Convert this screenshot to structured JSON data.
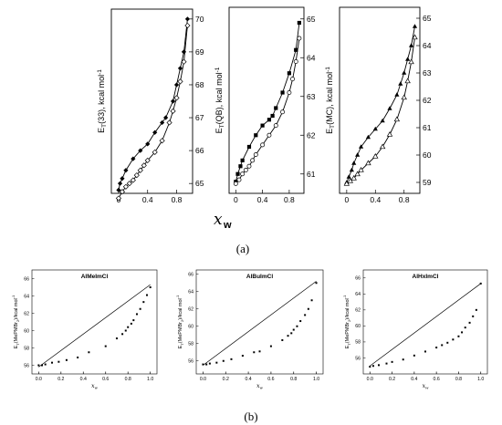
{
  "figure": {
    "panel_a_label": "(a)",
    "panel_b_label": "(b)",
    "panel_a_xlabel": "x",
    "panel_a_xlabel_sub": "w"
  },
  "chart_data": [
    {
      "type": "scatter",
      "panel": "a",
      "ylabel": "E_T(33), kcal mol^-1",
      "ylabel_main": "E",
      "ylabel_sub": "T",
      "ylabel_rest": "(33), kcal mol",
      "ylabel_sup": "-1",
      "xlim": [
        -0.1,
        1.02
      ],
      "ylim": [
        64.7,
        70.3
      ],
      "xticks": [
        0,
        0.4,
        0.8
      ],
      "xtick_labels": [
        "0",
        "0.4",
        "0.8"
      ],
      "yticks": [
        65,
        66,
        67,
        68,
        69,
        70
      ],
      "ytick_labels": [
        "65",
        "66",
        "67",
        "68",
        "69",
        "70"
      ],
      "series": [
        {
          "marker": "filled-diamond",
          "x": [
            0,
            0.02,
            0.05,
            0.1,
            0.2,
            0.3,
            0.4,
            0.5,
            0.6,
            0.65,
            0.75,
            0.8,
            0.85,
            0.9,
            0.95
          ],
          "y": [
            64.8,
            65.0,
            65.15,
            65.4,
            65.75,
            66.0,
            66.2,
            66.55,
            66.85,
            67.0,
            67.5,
            68.0,
            68.5,
            69.0,
            70.0
          ]
        },
        {
          "marker": "open-diamond",
          "x": [
            0,
            0.05,
            0.1,
            0.15,
            0.2,
            0.25,
            0.3,
            0.35,
            0.4,
            0.5,
            0.6,
            0.7,
            0.75,
            0.8,
            0.85,
            0.9,
            0.95
          ],
          "y": [
            64.55,
            64.75,
            64.9,
            65.0,
            65.1,
            65.25,
            65.4,
            65.55,
            65.7,
            65.95,
            66.3,
            66.85,
            67.2,
            67.6,
            68.1,
            68.7,
            69.8
          ]
        }
      ]
    },
    {
      "type": "scatter",
      "panel": "a",
      "ylabel": "E_T(QB), kcal mol^-1",
      "ylabel_main": "E",
      "ylabel_sub": "T",
      "ylabel_rest": "(QB), kcal mol",
      "ylabel_sup": "-1",
      "xlim": [
        -0.1,
        1.02
      ],
      "ylim": [
        60.5,
        65.3
      ],
      "xticks": [
        0,
        0.4,
        0.8
      ],
      "xtick_labels": [
        "0",
        "0.4",
        "0.8"
      ],
      "yticks": [
        61,
        62,
        63,
        64,
        65
      ],
      "ytick_labels": [
        "61",
        "62",
        "63",
        "64",
        "65"
      ],
      "series": [
        {
          "marker": "filled-square",
          "x": [
            0,
            0.03,
            0.07,
            0.1,
            0.2,
            0.3,
            0.4,
            0.5,
            0.55,
            0.6,
            0.7,
            0.8,
            0.9,
            0.95
          ],
          "y": [
            60.8,
            61.0,
            61.2,
            61.35,
            61.7,
            62.0,
            62.25,
            62.4,
            62.5,
            62.7,
            63.1,
            63.6,
            64.2,
            64.9
          ]
        },
        {
          "marker": "open-circle",
          "x": [
            0,
            0.05,
            0.1,
            0.15,
            0.2,
            0.25,
            0.3,
            0.4,
            0.5,
            0.6,
            0.7,
            0.8,
            0.85,
            0.9,
            0.95
          ],
          "y": [
            60.75,
            60.85,
            61.0,
            61.1,
            61.2,
            61.35,
            61.5,
            61.75,
            62.0,
            62.25,
            62.6,
            63.1,
            63.45,
            63.9,
            64.5
          ]
        }
      ]
    },
    {
      "type": "scatter",
      "panel": "a",
      "ylabel": "E_T(MC), kcal mol^-1",
      "ylabel_main": "E",
      "ylabel_sub": "T",
      "ylabel_rest": "(MC), kcal mol",
      "ylabel_sup": "-1",
      "xlim": [
        -0.1,
        1.02
      ],
      "ylim": [
        58.6,
        65.4
      ],
      "xticks": [
        0,
        0.4,
        0.8
      ],
      "xtick_labels": [
        "0",
        "0.4",
        "0.8"
      ],
      "yticks": [
        59,
        60,
        61,
        62,
        63,
        64,
        65
      ],
      "ytick_labels": [
        "59",
        "60",
        "61",
        "62",
        "63",
        "64",
        "65"
      ],
      "series": [
        {
          "marker": "filled-triangle",
          "x": [
            0,
            0.03,
            0.07,
            0.1,
            0.15,
            0.2,
            0.3,
            0.4,
            0.5,
            0.6,
            0.7,
            0.75,
            0.8,
            0.85,
            0.9,
            0.95
          ],
          "y": [
            59.0,
            59.2,
            59.45,
            59.7,
            60.0,
            60.3,
            60.65,
            60.95,
            61.25,
            61.7,
            62.2,
            62.6,
            63.0,
            63.5,
            64.0,
            64.7
          ]
        },
        {
          "marker": "open-triangle",
          "x": [
            0,
            0.05,
            0.1,
            0.15,
            0.2,
            0.3,
            0.4,
            0.5,
            0.6,
            0.7,
            0.8,
            0.85,
            0.9,
            0.95
          ],
          "y": [
            58.95,
            59.05,
            59.15,
            59.3,
            59.45,
            59.7,
            59.95,
            60.3,
            60.75,
            61.3,
            62.1,
            62.7,
            63.4,
            64.3
          ]
        }
      ]
    },
    {
      "type": "scatter",
      "panel": "b",
      "title": "AlMeImCl",
      "ylabel": "E_T(MePMBr_2)/kcal mol^-1",
      "ylabel_main": "E",
      "ylabel_sub": "T",
      "ylabel_rest": "(MePMBr",
      "ylabel_sub2": "2",
      "ylabel_rest2": ")/kcal mol",
      "ylabel_sup": "-1",
      "xlabel": "x",
      "xlabel_sub": "w",
      "xlim": [
        -0.06,
        1.06
      ],
      "ylim": [
        55,
        67
      ],
      "xticks": [
        0,
        0.2,
        0.4,
        0.6,
        0.8,
        1.0
      ],
      "xtick_labels": [
        "0.0",
        "0.2",
        "0.4",
        "0.6",
        "0.8",
        "1.0"
      ],
      "yticks": [
        56,
        58,
        60,
        62,
        64,
        66
      ],
      "ytick_labels": [
        "56",
        "58",
        "60",
        "62",
        "64",
        "66"
      ],
      "series": [
        {
          "marker": "point",
          "x": [
            0,
            0.03,
            0.06,
            0.12,
            0.18,
            0.25,
            0.35,
            0.45,
            0.6,
            0.7,
            0.75,
            0.78,
            0.8,
            0.83,
            0.85,
            0.88,
            0.91,
            0.94,
            0.97,
            1.0
          ],
          "y": [
            56.0,
            56.0,
            56.1,
            56.3,
            56.4,
            56.6,
            56.9,
            57.5,
            58.2,
            59.1,
            59.6,
            60.0,
            60.4,
            60.8,
            61.2,
            61.9,
            62.5,
            63.3,
            64.1,
            65.0
          ]
        },
        {
          "marker": "line",
          "x": [
            0,
            1.0
          ],
          "y": [
            55.8,
            65.3
          ]
        }
      ]
    },
    {
      "type": "scatter",
      "panel": "b",
      "title": "AlBuImCl",
      "ylabel": "E_T(MePMBr_2)/kcal mol^-1",
      "ylabel_main": "E",
      "ylabel_sub": "T",
      "ylabel_rest": "(MePMBr",
      "ylabel_sub2": "2",
      "ylabel_rest2": ")/kcal mol",
      "ylabel_sup": "-1",
      "xlabel": "x",
      "xlabel_sub": "w",
      "xlim": [
        -0.06,
        1.06
      ],
      "ylim": [
        54.5,
        66.5
      ],
      "xticks": [
        0,
        0.2,
        0.4,
        0.6,
        0.8,
        1.0
      ],
      "xtick_labels": [
        "0.0",
        "0.2",
        "0.4",
        "0.6",
        "0.8",
        "1.0"
      ],
      "yticks": [
        56,
        58,
        60,
        62,
        64,
        66
      ],
      "ytick_labels": [
        "56",
        "58",
        "60",
        "62",
        "64",
        "66"
      ],
      "series": [
        {
          "marker": "point",
          "x": [
            0,
            0.03,
            0.06,
            0.12,
            0.18,
            0.25,
            0.35,
            0.45,
            0.5,
            0.6,
            0.7,
            0.75,
            0.78,
            0.8,
            0.83,
            0.86,
            0.9,
            0.93,
            0.96,
            1.0
          ],
          "y": [
            55.6,
            55.6,
            55.7,
            55.8,
            56.0,
            56.2,
            56.6,
            57.0,
            57.1,
            57.7,
            58.4,
            58.9,
            59.2,
            59.6,
            60.0,
            60.6,
            61.3,
            62.0,
            63.0,
            65.0
          ]
        },
        {
          "marker": "line",
          "x": [
            0,
            1.0
          ],
          "y": [
            55.5,
            65.2
          ]
        }
      ]
    },
    {
      "type": "scatter",
      "panel": "b",
      "title": "AlHxImCl",
      "ylabel": "E_T(MePMBr_2)/kcal mol^-1",
      "ylabel_main": "E",
      "ylabel_sub": "T",
      "ylabel_rest": "(MePMBr",
      "ylabel_sub2": "2",
      "ylabel_rest2": ")/kcal mol",
      "ylabel_sup": "-1",
      "xlabel": "x",
      "xlabel_sub": "w",
      "xlim": [
        -0.06,
        1.06
      ],
      "ylim": [
        54,
        67
      ],
      "xticks": [
        0,
        0.2,
        0.4,
        0.6,
        0.8,
        1.0
      ],
      "xtick_labels": [
        "0.0",
        "0.2",
        "0.4",
        "0.6",
        "0.8",
        "1.0"
      ],
      "yticks": [
        56,
        58,
        60,
        62,
        64,
        66
      ],
      "ytick_labels": [
        "56",
        "58",
        "60",
        "62",
        "64",
        "66"
      ],
      "series": [
        {
          "marker": "point",
          "x": [
            0,
            0.03,
            0.08,
            0.15,
            0.2,
            0.3,
            0.4,
            0.5,
            0.6,
            0.65,
            0.7,
            0.75,
            0.8,
            0.83,
            0.86,
            0.9,
            0.93,
            0.96,
            1.0
          ],
          "y": [
            54.9,
            55.0,
            55.1,
            55.3,
            55.5,
            55.8,
            56.3,
            56.8,
            57.3,
            57.6,
            57.9,
            58.3,
            58.7,
            59.2,
            59.8,
            60.4,
            61.2,
            62.0,
            65.3
          ]
        },
        {
          "marker": "line",
          "x": [
            0,
            1.0
          ],
          "y": [
            55.0,
            65.3
          ]
        }
      ]
    }
  ]
}
